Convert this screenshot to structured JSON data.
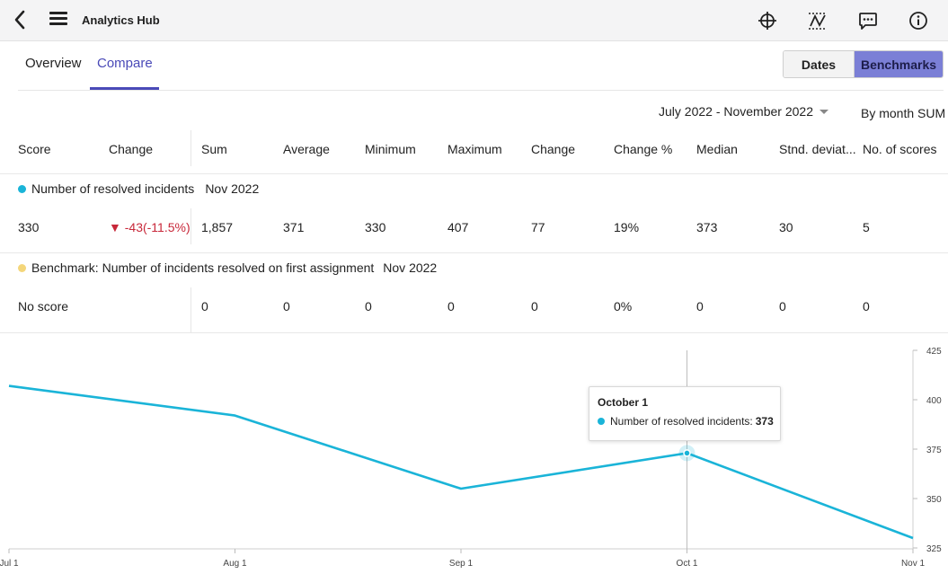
{
  "header": {
    "title": "Analytics Hub",
    "icons": [
      "back-icon",
      "menu-icon",
      "crosshair-icon",
      "trend-icon",
      "comment-icon",
      "info-icon"
    ]
  },
  "tabs": [
    {
      "label": "Overview",
      "active": false
    },
    {
      "label": "Compare",
      "active": true
    }
  ],
  "toggle": {
    "dates_label": "Dates",
    "benchmarks_label": "Benchmarks",
    "selected": "Benchmarks"
  },
  "range": {
    "label": "July 2022 - November 2022",
    "aggregation": "By month SUM"
  },
  "table": {
    "headers": [
      "Score",
      "Change",
      "Sum",
      "Average",
      "Minimum",
      "Maximum",
      "Change",
      "Change %",
      "Median",
      "Stnd. deviat...",
      "No. of scores"
    ],
    "rows": [
      {
        "series": "Number of resolved incidents",
        "period": "Nov 2022",
        "color": "#1ab4d8",
        "score": "330",
        "change": "▼ -43(-11.5%)",
        "values": [
          "1,857",
          "371",
          "330",
          "407",
          "77",
          "19%",
          "373",
          "30",
          "5"
        ]
      },
      {
        "series": "Benchmark: Number of incidents resolved on first assignment",
        "period": "Nov 2022",
        "color": "#f4d67a",
        "score": "No score",
        "change": "",
        "values": [
          "0",
          "0",
          "0",
          "0",
          "0",
          "0%",
          "0",
          "0",
          "0"
        ]
      }
    ]
  },
  "chart_data": {
    "type": "line",
    "x": [
      "Jul 1",
      "Aug 1",
      "Sep 1",
      "Oct 1",
      "Nov 1"
    ],
    "series": [
      {
        "name": "Number of resolved incidents",
        "values": [
          407,
          392,
          355,
          373,
          330
        ],
        "color": "#1ab4d8"
      }
    ],
    "ylim": [
      325,
      425
    ],
    "yticks": [
      425,
      400,
      375,
      350,
      325
    ],
    "y_axis_side": "right",
    "grid": false,
    "tooltip": {
      "title": "October 1",
      "label": "Number of resolved incidents:",
      "value": "373"
    }
  }
}
